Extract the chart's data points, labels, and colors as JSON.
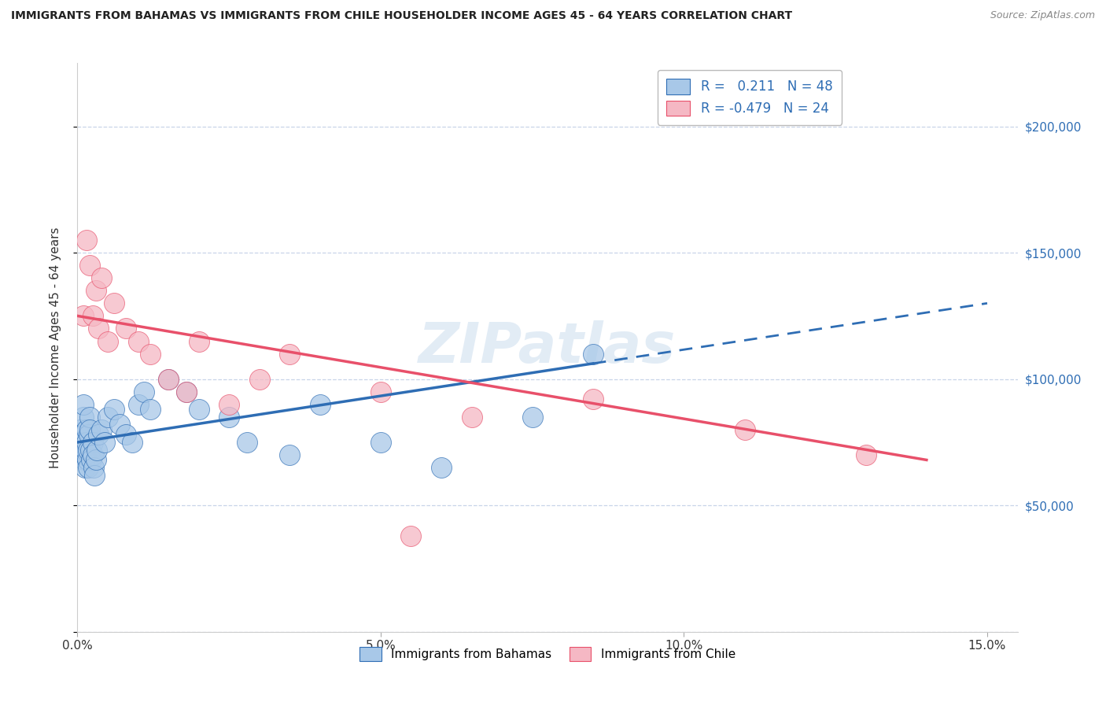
{
  "title": "IMMIGRANTS FROM BAHAMAS VS IMMIGRANTS FROM CHILE HOUSEHOLDER INCOME AGES 45 - 64 YEARS CORRELATION CHART",
  "source": "Source: ZipAtlas.com",
  "ylabel": "Householder Income Ages 45 - 64 years",
  "xlim": [
    0.0,
    15.5
  ],
  "ylim": [
    0,
    225000
  ],
  "R_bahamas": 0.211,
  "N_bahamas": 48,
  "R_chile": -0.479,
  "N_chile": 24,
  "bahamas_color": "#a8c8e8",
  "chile_color": "#f5b8c4",
  "bahamas_line_color": "#2e6db4",
  "chile_line_color": "#e8506a",
  "background_color": "#ffffff",
  "grid_color": "#c8d4e8",
  "watermark": "ZIPatlas",
  "legend_label_bahamas": "Immigrants from Bahamas",
  "legend_label_chile": "Immigrants from Chile",
  "bahamas_x": [
    0.05,
    0.07,
    0.08,
    0.09,
    0.1,
    0.1,
    0.11,
    0.12,
    0.13,
    0.14,
    0.15,
    0.15,
    0.16,
    0.17,
    0.18,
    0.19,
    0.2,
    0.2,
    0.22,
    0.23,
    0.25,
    0.25,
    0.27,
    0.28,
    0.3,
    0.32,
    0.35,
    0.4,
    0.45,
    0.5,
    0.6,
    0.7,
    0.8,
    0.9,
    1.0,
    1.1,
    1.2,
    1.5,
    1.8,
    2.0,
    2.5,
    2.8,
    3.5,
    4.0,
    5.0,
    6.0,
    7.5,
    8.5
  ],
  "bahamas_y": [
    80000,
    75000,
    72000,
    78000,
    85000,
    90000,
    68000,
    65000,
    70000,
    72000,
    80000,
    75000,
    68000,
    72000,
    65000,
    78000,
    85000,
    80000,
    72000,
    68000,
    75000,
    70000,
    65000,
    62000,
    68000,
    72000,
    78000,
    80000,
    75000,
    85000,
    88000,
    82000,
    78000,
    75000,
    90000,
    95000,
    88000,
    100000,
    95000,
    88000,
    85000,
    75000,
    70000,
    90000,
    75000,
    65000,
    85000,
    110000
  ],
  "chile_x": [
    0.1,
    0.15,
    0.2,
    0.25,
    0.3,
    0.35,
    0.4,
    0.5,
    0.6,
    0.8,
    1.0,
    1.2,
    1.5,
    1.8,
    2.0,
    2.5,
    3.0,
    3.5,
    5.0,
    6.5,
    8.5,
    11.0,
    13.0,
    5.5
  ],
  "chile_y": [
    125000,
    155000,
    145000,
    125000,
    135000,
    120000,
    140000,
    115000,
    130000,
    120000,
    115000,
    110000,
    100000,
    95000,
    115000,
    90000,
    100000,
    110000,
    95000,
    85000,
    92000,
    80000,
    70000,
    38000
  ],
  "trendline_bahamas_x0": 0.0,
  "trendline_bahamas_y0": 75000,
  "trendline_bahamas_x1": 15.0,
  "trendline_bahamas_y1": 130000,
  "trendline_chile_x0": 0.0,
  "trendline_chile_y0": 125000,
  "trendline_chile_x1": 14.0,
  "trendline_chile_y1": 68000,
  "solid_end_bahamas": 8.5
}
